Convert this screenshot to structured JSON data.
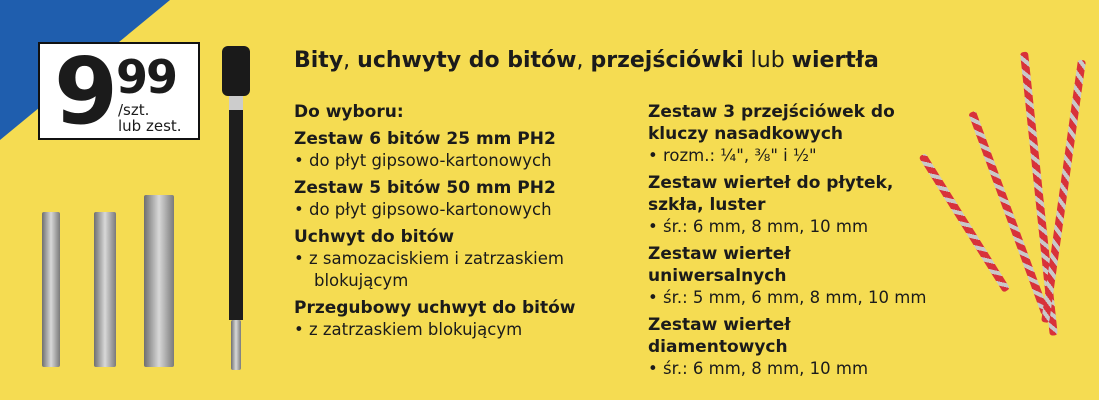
{
  "price": {
    "main": "9",
    "cents": "99",
    "unit_line1": "/szt.",
    "unit_line2": "lub zest."
  },
  "title": {
    "part1": "Bity",
    "sep1": ", ",
    "part2": "uchwyty do bitów",
    "sep2": ", ",
    "part3": "przejściówki",
    "conj": " lub ",
    "part4": "wiertła"
  },
  "left_column": [
    {
      "type": "heading",
      "text": "Do wyboru:"
    },
    {
      "type": "heading",
      "text": "Zestaw 6 bitów 25 mm PH2"
    },
    {
      "type": "bullet",
      "text": "do płyt gipsowo-kartonowych"
    },
    {
      "type": "heading",
      "text": "Zestaw 5 bitów 50 mm PH2"
    },
    {
      "type": "bullet",
      "text": "do płyt gipsowo-kartonowych"
    },
    {
      "type": "heading",
      "text": "Uchwyt do bitów"
    },
    {
      "type": "bullet",
      "text": "z samozaciskiem i zatrzaskiem blokującym"
    },
    {
      "type": "heading",
      "text": "Przegubowy uchwyt do bitów"
    },
    {
      "type": "bullet",
      "text": "z zatrzaskiem blokującym"
    }
  ],
  "right_column": [
    {
      "type": "heading",
      "text": "Zestaw 3 przejściówek do kluczy nasadkowych"
    },
    {
      "type": "bullet",
      "text": "rozm.: ¼\", ⅜\" i ½\""
    },
    {
      "type": "heading",
      "text": "Zestaw wierteł do płytek, szkła, luster"
    },
    {
      "type": "bullet",
      "text": "śr.: 6 mm, 8 mm, 10 mm"
    },
    {
      "type": "heading",
      "text": "Zestaw wierteł uniwersalnych"
    },
    {
      "type": "bullet",
      "text": "śr.: 5 mm, 6 mm, 8 mm, 10 mm"
    },
    {
      "type": "heading",
      "text": "Zestaw wierteł diamentowych"
    },
    {
      "type": "bullet",
      "text": "śr.: 6 mm, 8 mm, 10 mm"
    }
  ],
  "colors": {
    "background": "#f5dc52",
    "corner": "#1f5eae",
    "drill_accent": "#d8323a"
  }
}
